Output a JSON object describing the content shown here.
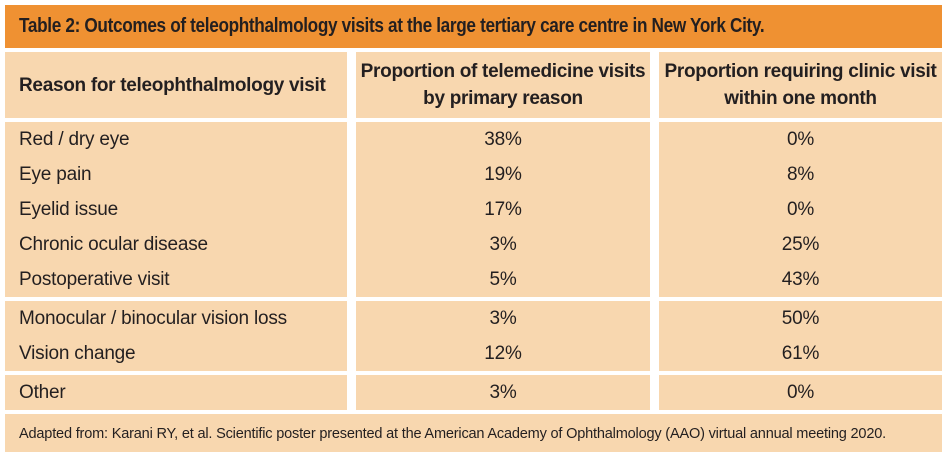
{
  "table": {
    "title": "Table 2: Outcomes of teleophthalmology visits at the large tertiary care centre in New York City.",
    "header": {
      "reason": "Reason for teleophthalmology visit",
      "telemedicine": "Proportion of telemedicine visits by primary reason",
      "clinic": "Proportion requiring clinic visit within one month"
    },
    "groups": [
      {
        "rows": [
          {
            "reason": "Red / dry eye",
            "telemedicine": "38%",
            "clinic": "0%"
          },
          {
            "reason": "Eye pain",
            "telemedicine": "19%",
            "clinic": "8%"
          },
          {
            "reason": "Eyelid issue",
            "telemedicine": "17%",
            "clinic": "0%"
          },
          {
            "reason": "Chronic ocular disease",
            "telemedicine": "3%",
            "clinic": "25%"
          },
          {
            "reason": "Postoperative visit",
            "telemedicine": "5%",
            "clinic": "43%"
          }
        ]
      },
      {
        "rows": [
          {
            "reason": "Monocular / binocular vision loss",
            "telemedicine": "3%",
            "clinic": "50%"
          },
          {
            "reason": "Vision change",
            "telemedicine": "12%",
            "clinic": "61%"
          }
        ]
      },
      {
        "rows": [
          {
            "reason": "Other",
            "telemedicine": "3%",
            "clinic": "0%"
          }
        ]
      }
    ],
    "footnote": "Adapted from: Karani RY, et al. Scientific poster presented at the American Academy of Ophthalmology (AAO) virtual annual meeting 2020.",
    "colors": {
      "accent_orange": "#ef9132",
      "cell_peach": "#f8d7af",
      "text": "#231f20",
      "separator": "#ffffff"
    }
  }
}
